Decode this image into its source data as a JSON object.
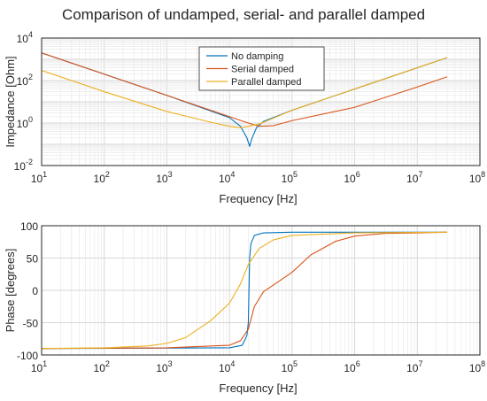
{
  "title": "Comparison of undamped, serial- and parallel damped",
  "colors": {
    "no_damping": "#0072BD",
    "serial": "#D95319",
    "parallel": "#EDB120",
    "grid_major": "#d7d7d7",
    "grid_minor": "#ececec",
    "axis": "#262626"
  },
  "chart_data": [
    {
      "type": "line",
      "xscale": "log",
      "yscale": "log",
      "xlabel": "Frequency [Hz]",
      "ylabel": "Impedance [Ohm]",
      "xlim": [
        10,
        100000000
      ],
      "ylim": [
        0.01,
        10000
      ],
      "grid": true,
      "legend_position": "top-center",
      "x_ticks": [
        {
          "base": "10",
          "exp": "1"
        },
        {
          "base": "10",
          "exp": "2"
        },
        {
          "base": "10",
          "exp": "3"
        },
        {
          "base": "10",
          "exp": "4"
        },
        {
          "base": "10",
          "exp": "5"
        },
        {
          "base": "10",
          "exp": "6"
        },
        {
          "base": "10",
          "exp": "7"
        },
        {
          "base": "10",
          "exp": "8"
        }
      ],
      "y_ticks": [
        {
          "base": "10",
          "exp": "-2"
        },
        {
          "base": "10",
          "exp": "0"
        },
        {
          "base": "10",
          "exp": "2"
        },
        {
          "base": "10",
          "exp": "4"
        }
      ],
      "series": [
        {
          "name": "No damping",
          "color": "#0072BD",
          "points": [
            [
              10,
              2000
            ],
            [
              100,
              200
            ],
            [
              1000,
              20
            ],
            [
              10000,
              1.8
            ],
            [
              15000,
              0.7
            ],
            [
              19000,
              0.2
            ],
            [
              21000,
              0.08
            ],
            [
              23000,
              0.2
            ],
            [
              27000,
              0.6
            ],
            [
              35000,
              1.2
            ],
            [
              100000,
              4
            ],
            [
              1000000,
              40
            ],
            [
              10000000,
              400
            ],
            [
              30000000,
              1200
            ]
          ]
        },
        {
          "name": "Serial damped",
          "color": "#D95319",
          "points": [
            [
              10,
              2000
            ],
            [
              100,
              200
            ],
            [
              1000,
              20
            ],
            [
              10000,
              2
            ],
            [
              20000,
              1.0
            ],
            [
              30000,
              0.7
            ],
            [
              50000,
              0.75
            ],
            [
              100000,
              1.3
            ],
            [
              1000000,
              5.5
            ],
            [
              10000000,
              50
            ],
            [
              30000000,
              150
            ]
          ]
        },
        {
          "name": "Parallel damped",
          "color": "#EDB120",
          "points": [
            [
              10,
              300
            ],
            [
              100,
              30
            ],
            [
              1000,
              3.5
            ],
            [
              5000,
              1.1
            ],
            [
              10000,
              0.7
            ],
            [
              15000,
              0.6
            ],
            [
              20000,
              0.7
            ],
            [
              30000,
              0.9
            ],
            [
              100000,
              4
            ],
            [
              1000000,
              40
            ],
            [
              10000000,
              400
            ],
            [
              30000000,
              1200
            ]
          ]
        }
      ]
    },
    {
      "type": "line",
      "xscale": "log",
      "yscale": "linear",
      "xlabel": "Frequency [Hz]",
      "ylabel": "Phase [degrees]",
      "xlim": [
        10,
        100000000
      ],
      "ylim": [
        -100,
        100
      ],
      "grid": true,
      "x_ticks": [
        {
          "base": "10",
          "exp": "1"
        },
        {
          "base": "10",
          "exp": "2"
        },
        {
          "base": "10",
          "exp": "3"
        },
        {
          "base": "10",
          "exp": "4"
        },
        {
          "base": "10",
          "exp": "5"
        },
        {
          "base": "10",
          "exp": "6"
        },
        {
          "base": "10",
          "exp": "7"
        },
        {
          "base": "10",
          "exp": "8"
        }
      ],
      "y_ticks": [
        {
          "base": "-100",
          "exp": ""
        },
        {
          "base": "-50",
          "exp": ""
        },
        {
          "base": "0",
          "exp": ""
        },
        {
          "base": "50",
          "exp": ""
        },
        {
          "base": "100",
          "exp": ""
        }
      ],
      "series": [
        {
          "name": "No damping",
          "color": "#0072BD",
          "points": [
            [
              10,
              -90
            ],
            [
              10000,
              -89
            ],
            [
              16000,
              -85
            ],
            [
              19000,
              -70
            ],
            [
              20000,
              -50
            ],
            [
              20500,
              0
            ],
            [
              21000,
              50
            ],
            [
              22000,
              72
            ],
            [
              25000,
              85
            ],
            [
              35000,
              89
            ],
            [
              100000,
              90
            ],
            [
              30000000,
              90
            ]
          ]
        },
        {
          "name": "Serial damped",
          "color": "#D95319",
          "points": [
            [
              10,
              -90
            ],
            [
              1000,
              -89
            ],
            [
              10000,
              -85
            ],
            [
              15000,
              -78
            ],
            [
              20000,
              -60
            ],
            [
              25000,
              -25
            ],
            [
              35000,
              -2
            ],
            [
              50000,
              8
            ],
            [
              100000,
              28
            ],
            [
              200000,
              55
            ],
            [
              500000,
              76
            ],
            [
              1000000,
              84
            ],
            [
              3000000,
              88
            ],
            [
              10000000,
              89
            ],
            [
              30000000,
              90
            ]
          ]
        },
        {
          "name": "Parallel damped",
          "color": "#EDB120",
          "points": [
            [
              10,
              -90
            ],
            [
              100,
              -89
            ],
            [
              500,
              -86
            ],
            [
              1000,
              -82
            ],
            [
              2000,
              -73
            ],
            [
              5000,
              -47
            ],
            [
              10000,
              -20
            ],
            [
              15000,
              10
            ],
            [
              20000,
              40
            ],
            [
              30000,
              65
            ],
            [
              50000,
              78
            ],
            [
              100000,
              85
            ],
            [
              1000000,
              89
            ],
            [
              30000000,
              90
            ]
          ]
        }
      ]
    }
  ]
}
